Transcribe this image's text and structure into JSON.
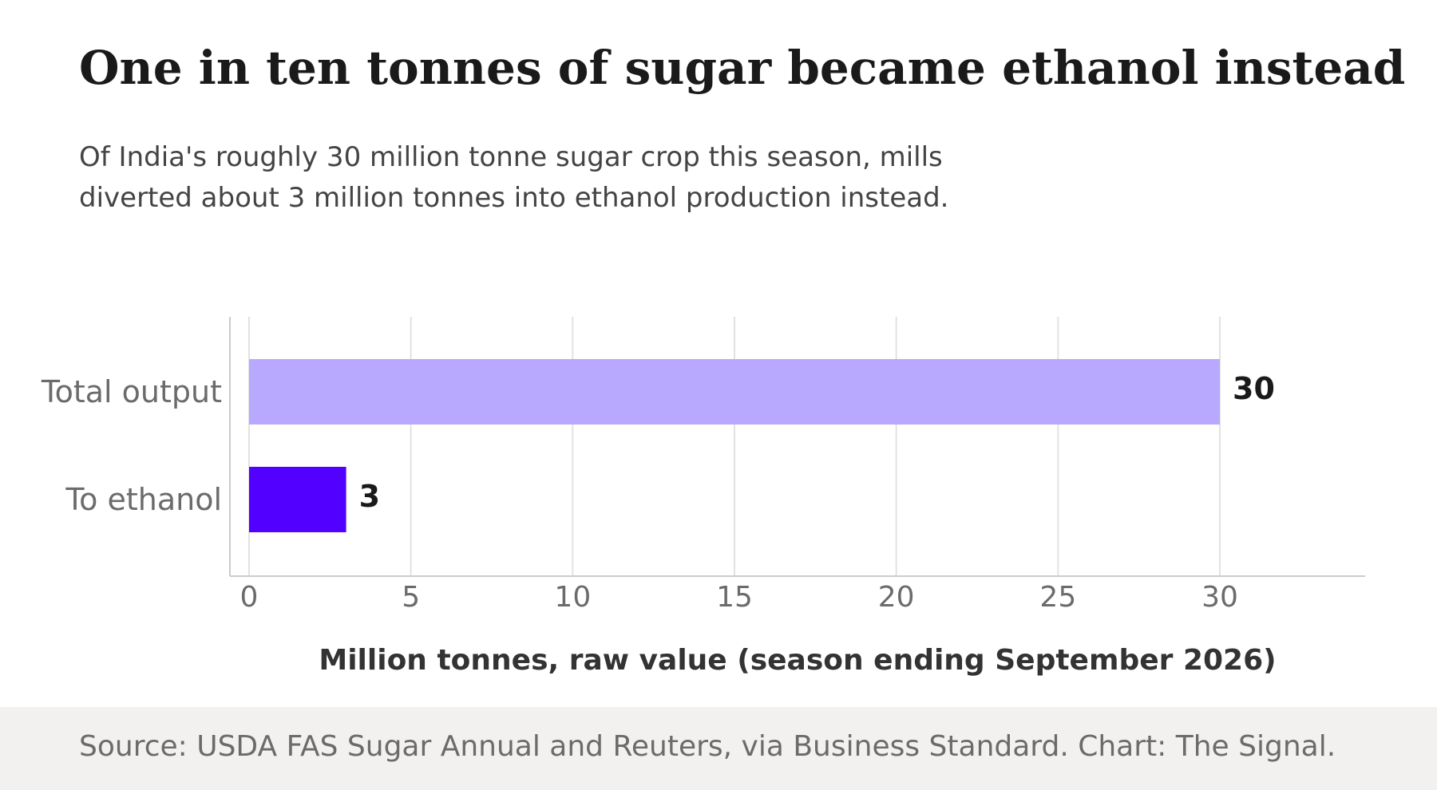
{
  "title": "One in ten tonnes of sugar became ethanol instead",
  "subtitle": "Of India's roughly 30 million tonne sugar crop this season, mills diverted about 3 million tonnes into ethanol production instead.",
  "source": "Source: USDA FAS Sugar Annual and Reuters, via Business Standard. Chart: The Signal.",
  "colors": {
    "total_output": "#b8a9ff",
    "to_ethanol": "#5200ff",
    "grid": "#e2e2e2",
    "axis": "#cccccc",
    "tick_label": "#6b6b6b",
    "value_label": "#1a1a1a",
    "xlabel": "#333333",
    "footer_bg": "#f2f1ef"
  },
  "chart_data": {
    "type": "bar",
    "orientation": "horizontal",
    "categories": [
      "Total output",
      "To ethanol"
    ],
    "values": [
      30,
      3
    ],
    "value_labels": [
      "30",
      "3"
    ],
    "xlabel": "Million tonnes, raw value (season ending September 2026)",
    "ylabel": "",
    "xlim": [
      0,
      34.5
    ],
    "xticks": [
      0,
      5,
      10,
      15,
      20,
      25,
      30
    ],
    "grid": "vertical",
    "legend": "none"
  }
}
